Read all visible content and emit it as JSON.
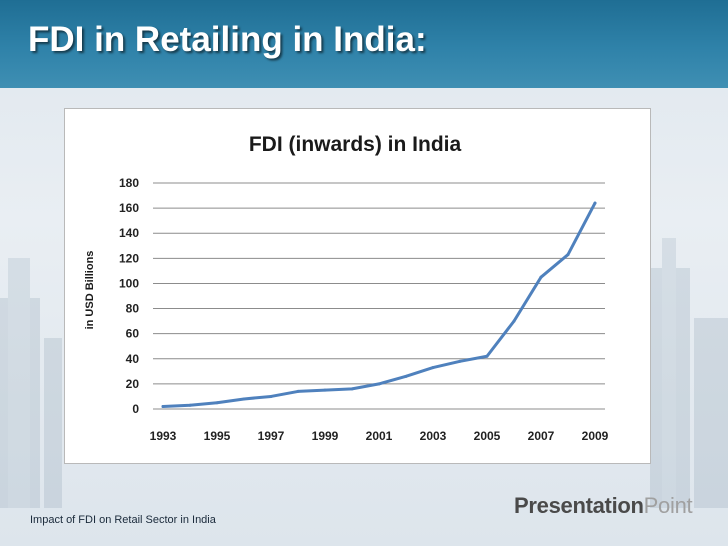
{
  "slide": {
    "title": "FDI in Retailing in India:",
    "footer": "Impact of FDI on Retail Sector in India",
    "logo_part1": "Presentation",
    "logo_part2": "Point"
  },
  "colors": {
    "header": "#2a7aa1",
    "line": "#4f81bd",
    "gridline": "#8c8c8c"
  },
  "chart_data": {
    "type": "line",
    "title": "FDI (inwards) in India",
    "ylabel": "in USD Billions",
    "xlabel": "",
    "ylim": [
      0,
      180
    ],
    "ystep": 20,
    "x": [
      1993,
      1994,
      1995,
      1996,
      1997,
      1998,
      1999,
      2000,
      2001,
      2002,
      2003,
      2004,
      2005,
      2006,
      2007,
      2008,
      2009
    ],
    "xticks": [
      "1993",
      "1995",
      "1997",
      "1999",
      "2001",
      "2003",
      "2005",
      "2007",
      "2009"
    ],
    "yticks": [
      "0",
      "20",
      "40",
      "60",
      "80",
      "100",
      "120",
      "140",
      "160",
      "180"
    ],
    "series": [
      {
        "values": [
          2,
          3,
          5,
          8,
          10,
          14,
          15,
          16,
          20,
          26,
          33,
          38,
          42,
          70,
          105,
          123,
          164
        ]
      }
    ],
    "grid": true,
    "legend": "none"
  }
}
